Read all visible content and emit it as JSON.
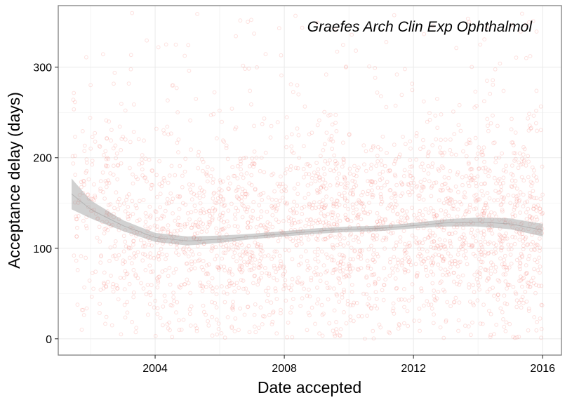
{
  "chart_data": {
    "type": "scatter",
    "title": "",
    "annotation": "Graefes Arch Clin Exp Ophthalmol",
    "xlabel": "Date accepted",
    "ylabel": "Acceptance delay (days)",
    "xlim": [
      "2001-01-01",
      "2016-08-01"
    ],
    "ylim": [
      -18,
      368
    ],
    "x_ticks": [
      {
        "value": "2004-01-01",
        "label": "2004"
      },
      {
        "value": "2008-01-01",
        "label": "2008"
      },
      {
        "value": "2012-01-01",
        "label": "2012"
      },
      {
        "value": "2016-01-01",
        "label": "2016"
      }
    ],
    "y_ticks": [
      {
        "value": 0,
        "label": "0"
      },
      {
        "value": 100,
        "label": "100"
      },
      {
        "value": 200,
        "label": "200"
      },
      {
        "value": 300,
        "label": "300"
      }
    ],
    "grid": true,
    "points": {
      "color": "#f8766d",
      "opacity": 0.22,
      "filled": false,
      "count": 2600,
      "x_range": [
        "2001-06-01",
        "2016-01-01"
      ],
      "y_range": [
        0,
        360
      ],
      "typical_range": [
        40,
        230
      ]
    },
    "smooth": {
      "method": "loess",
      "line_color": "#999999",
      "band_color": "#999999",
      "band_opacity": 0.45,
      "x": [
        "2001-06-01",
        "2002-01-01",
        "2003-01-01",
        "2004-01-01",
        "2005-01-01",
        "2006-01-01",
        "2007-01-01",
        "2008-01-01",
        "2009-01-01",
        "2010-01-01",
        "2011-01-01",
        "2012-01-01",
        "2013-01-01",
        "2014-01-01",
        "2015-01-01",
        "2016-01-01"
      ],
      "fit": [
        160,
        143,
        125,
        112,
        108,
        110,
        113,
        116,
        119,
        121,
        122,
        125,
        128,
        129,
        127,
        120
      ],
      "lower": [
        143,
        133,
        119,
        107,
        103,
        106,
        110,
        113,
        116,
        118,
        119,
        122,
        124,
        124,
        121,
        113
      ],
      "upper": [
        177,
        153,
        131,
        117,
        113,
        114,
        116,
        119,
        122,
        124,
        125,
        128,
        132,
        134,
        133,
        127
      ]
    }
  }
}
